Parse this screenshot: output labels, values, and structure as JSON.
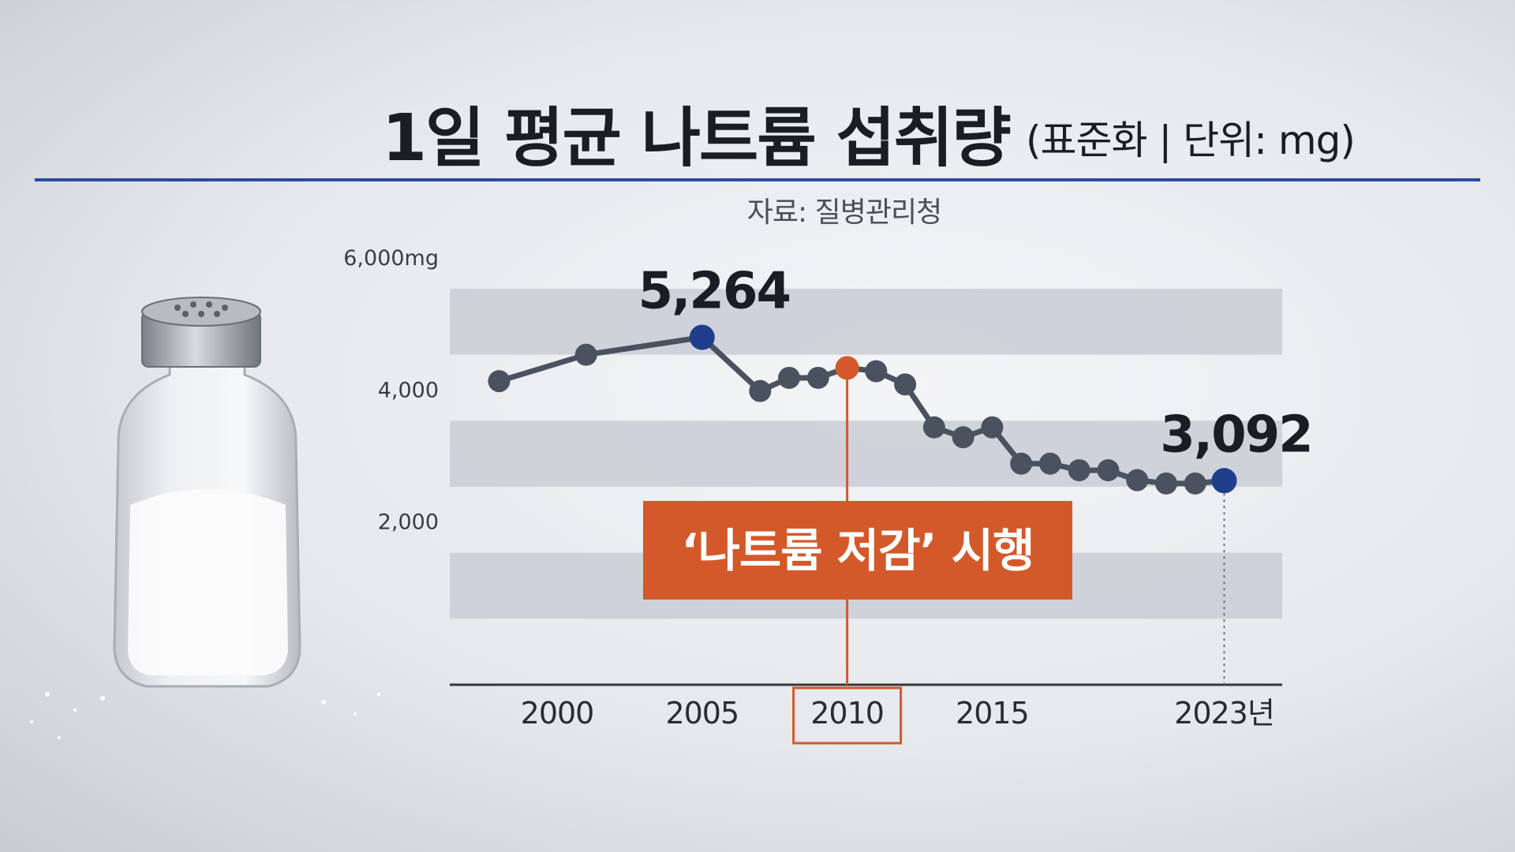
{
  "title": {
    "main": "1일 평균 나트륨 섭취량",
    "sub": "(표준화 | 단위: mg)"
  },
  "source": "자료: 질병관리청",
  "annotation": {
    "label": "‘나트륨 저감’ 시행",
    "year": 2010
  },
  "colors": {
    "line": "#4a5260",
    "highlight": "#1f3f8c",
    "accent": "#d3592a",
    "rule": "#2a4aa3",
    "band": "#c9ccd5"
  },
  "chart_data": {
    "type": "line",
    "title": "1일 평균 나트륨 섭취량",
    "ylabel": "",
    "xlabel": "",
    "ylim": [
      0,
      6000
    ],
    "xlim": [
      1996.3,
      2025.0
    ],
    "y_ticks": [
      "6,000mg",
      "4,000",
      "2,000"
    ],
    "y_tick_values": [
      6000,
      4000,
      2000
    ],
    "x_ticks": [
      "2000",
      "2005",
      "2010",
      "2015",
      "2023년"
    ],
    "x_tick_values": [
      2000,
      2005,
      2010,
      2015,
      2023
    ],
    "grid": "horizontal bands",
    "series": [
      {
        "x": [
          1998,
          2001,
          2005,
          2007,
          2008,
          2009,
          2010,
          2011,
          2012,
          2013,
          2014,
          2015,
          2016,
          2017,
          2018,
          2019,
          2020,
          2021,
          2022,
          2023
        ],
        "values": [
          4600,
          5000,
          5264,
          4450,
          4650,
          4650,
          4800,
          4750,
          4550,
          3900,
          3750,
          3900,
          3350,
          3350,
          3250,
          3250,
          3100,
          3050,
          3050,
          3092
        ]
      }
    ],
    "data_labels": [
      {
        "x": 2005,
        "text": "5,264"
      },
      {
        "x": 2023,
        "text": "3,092"
      }
    ]
  }
}
